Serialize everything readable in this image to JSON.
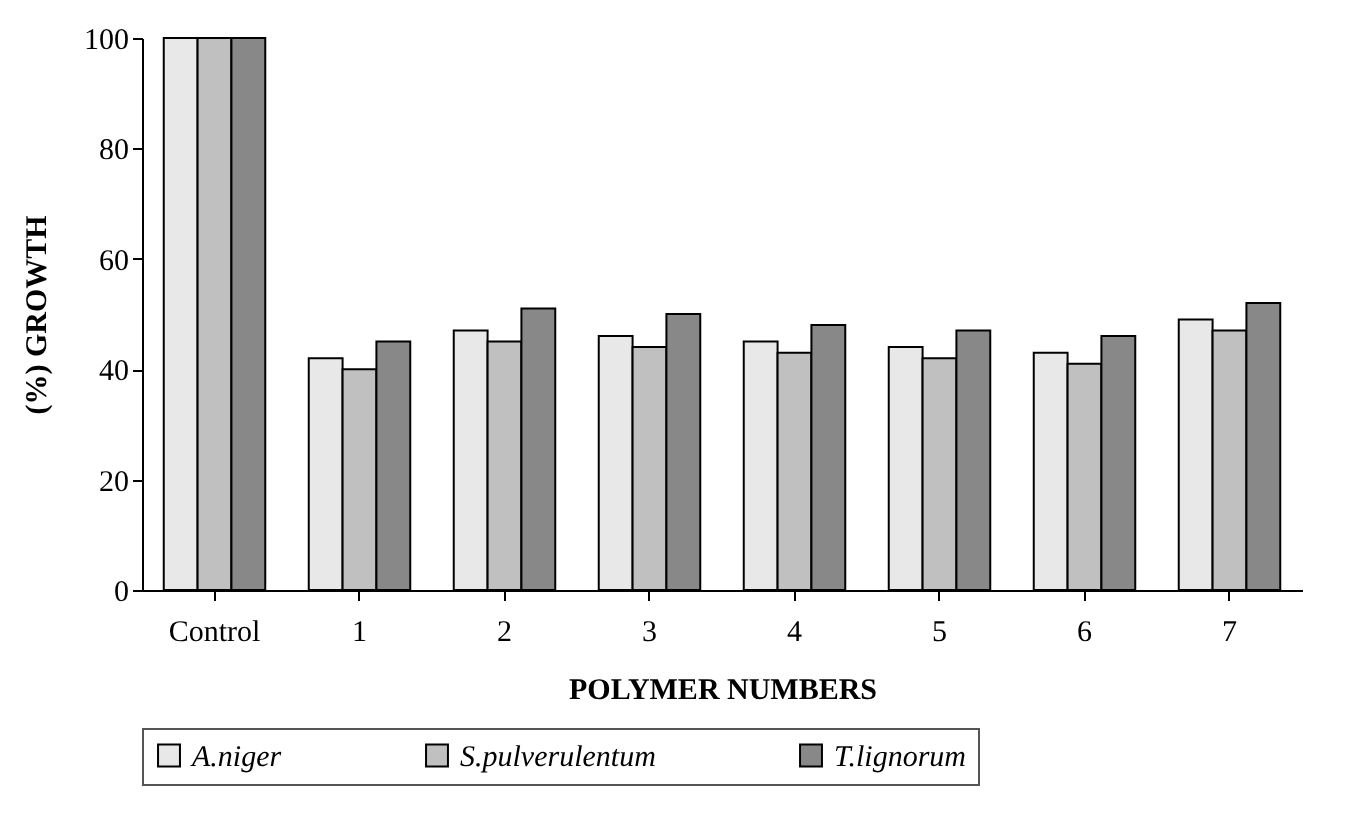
{
  "chart_data": {
    "type": "bar",
    "xlabel": "POLYMER NUMBERS",
    "ylabel": "(%) GROWTH",
    "categories": [
      "Control",
      "1",
      "2",
      "3",
      "4",
      "5",
      "6",
      "7"
    ],
    "series": [
      {
        "name": "A.niger",
        "color": "#e8e8e8",
        "values": [
          100,
          42,
          47,
          46,
          45,
          44,
          43,
          49
        ]
      },
      {
        "name": "S.pulverulentum",
        "color": "#c0c0c0",
        "values": [
          100,
          40,
          45,
          44,
          43,
          42,
          41,
          47
        ]
      },
      {
        "name": "T.lignorum",
        "color": "#888888",
        "values": [
          100,
          45,
          51,
          50,
          48,
          47,
          46,
          52
        ]
      }
    ],
    "ylim": [
      0,
      100
    ],
    "yticks": [
      0,
      20,
      40,
      60,
      80,
      100
    ],
    "grid": false,
    "legend": "bottom"
  }
}
